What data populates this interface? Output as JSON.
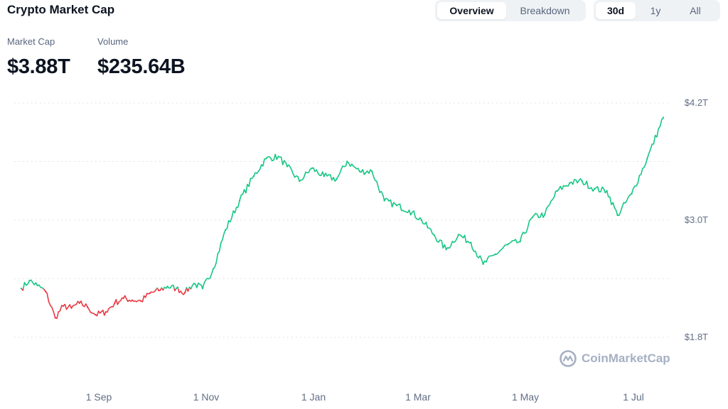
{
  "header": {
    "title": "Crypto Market Cap",
    "view_tabs": [
      "Overview",
      "Breakdown"
    ],
    "range_tabs": [
      "30d",
      "1y",
      "All"
    ],
    "active_view": "Overview",
    "active_range": "30d"
  },
  "stats": {
    "market_cap_label": "Market Cap",
    "market_cap_value": "$3.88T",
    "volume_label": "Volume",
    "volume_value": "$235.64B"
  },
  "watermark": "CoinMarketCap",
  "colors": {
    "up": "#16c784",
    "down": "#ea3943",
    "grid": "#dfe3ea",
    "axis_text": "#616e85"
  },
  "chart_data": {
    "type": "line",
    "title": "",
    "xlabel": "",
    "ylabel": "",
    "x_tick_labels": [
      "1 Sep",
      "1 Nov",
      "1 Jan",
      "1 Mar",
      "1 May",
      "1 Jul"
    ],
    "y_tick_labels": [
      "$4.2T",
      "$3.0T",
      "$1.8T"
    ],
    "y_ticks": [
      4.2,
      3.0,
      1.8
    ],
    "ylim": [
      1.8,
      4.2
    ],
    "y_unit": "T USD",
    "grid": true,
    "baseline": 2.3,
    "series": [
      {
        "x": [
          "2024-07-15",
          "2024-07-20",
          "2024-07-25",
          "2024-07-30",
          "2024-08-05",
          "2024-08-10",
          "2024-08-15",
          "2024-08-20",
          "2024-08-25",
          "2024-08-30",
          "2024-09-05",
          "2024-09-10",
          "2024-09-15",
          "2024-09-20",
          "2024-09-25",
          "2024-09-30",
          "2024-10-05",
          "2024-10-10",
          "2024-10-15",
          "2024-10-20",
          "2024-10-25",
          "2024-10-30",
          "2024-11-05",
          "2024-11-12",
          "2024-11-20",
          "2024-11-28",
          "2024-12-05",
          "2024-12-12",
          "2024-12-17",
          "2024-12-24",
          "2024-12-31",
          "2025-01-07",
          "2025-01-14",
          "2025-01-20",
          "2025-01-27",
          "2025-02-03",
          "2025-02-10",
          "2025-02-17",
          "2025-02-24",
          "2025-03-03",
          "2025-03-10",
          "2025-03-17",
          "2025-03-24",
          "2025-03-31",
          "2025-04-07",
          "2025-04-14",
          "2025-04-21",
          "2025-04-28",
          "2025-05-05",
          "2025-05-12",
          "2025-05-19",
          "2025-05-26",
          "2025-06-02",
          "2025-06-09",
          "2025-06-16",
          "2025-06-22",
          "2025-06-30",
          "2025-07-07",
          "2025-07-14"
        ],
        "values": [
          2.3,
          2.38,
          2.33,
          2.27,
          2.0,
          2.12,
          2.1,
          2.15,
          2.11,
          2.03,
          2.06,
          2.15,
          2.2,
          2.18,
          2.17,
          2.25,
          2.28,
          2.32,
          2.3,
          2.26,
          2.35,
          2.3,
          2.5,
          2.9,
          3.2,
          3.45,
          3.63,
          3.65,
          3.55,
          3.4,
          3.53,
          3.45,
          3.42,
          3.6,
          3.5,
          3.5,
          3.2,
          3.15,
          3.1,
          3.0,
          2.85,
          2.7,
          2.85,
          2.77,
          2.55,
          2.65,
          2.75,
          2.78,
          3.03,
          3.06,
          3.3,
          3.38,
          3.4,
          3.32,
          3.3,
          3.05,
          3.27,
          3.63,
          4.05
        ]
      }
    ]
  }
}
